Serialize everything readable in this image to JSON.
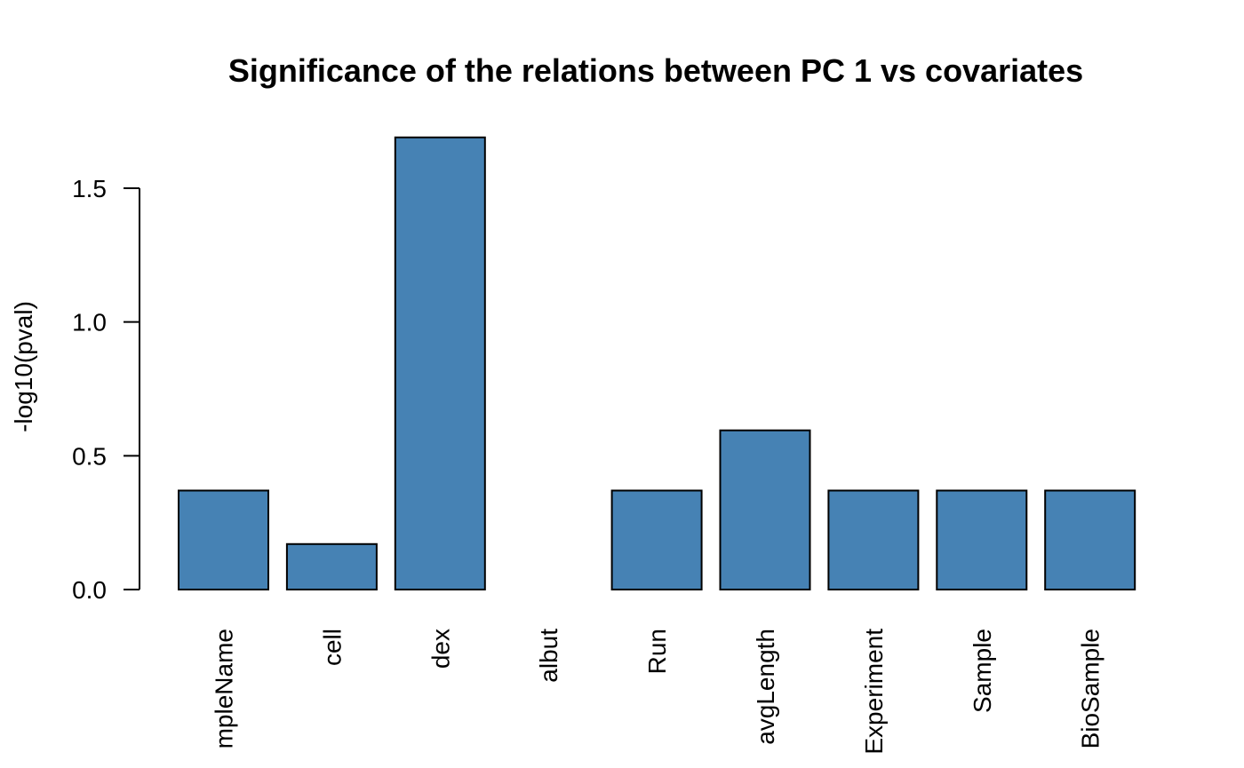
{
  "chart_data": {
    "type": "bar",
    "title": "Significance of the relations between PC 1 vs covariates",
    "xlabel": "",
    "ylabel": "-log10(pval)",
    "categories": [
      "SampleName",
      "cell",
      "dex",
      "albut",
      "Run",
      "avgLength",
      "Experiment",
      "Sample",
      "BioSample"
    ],
    "displayed_categories": [
      "mpleName",
      "cell",
      "dex",
      "albut",
      "Run",
      "avgLength",
      "Experiment",
      "Sample",
      "BioSample"
    ],
    "values": [
      0.37,
      0.17,
      1.69,
      0.0,
      0.37,
      0.595,
      0.37,
      0.37,
      0.37
    ],
    "ylim": [
      0,
      1.5
    ],
    "yticks": [
      "0.0",
      "0.5",
      "1.0",
      "1.5"
    ],
    "bar_color": "#4682B4",
    "grid": false
  }
}
